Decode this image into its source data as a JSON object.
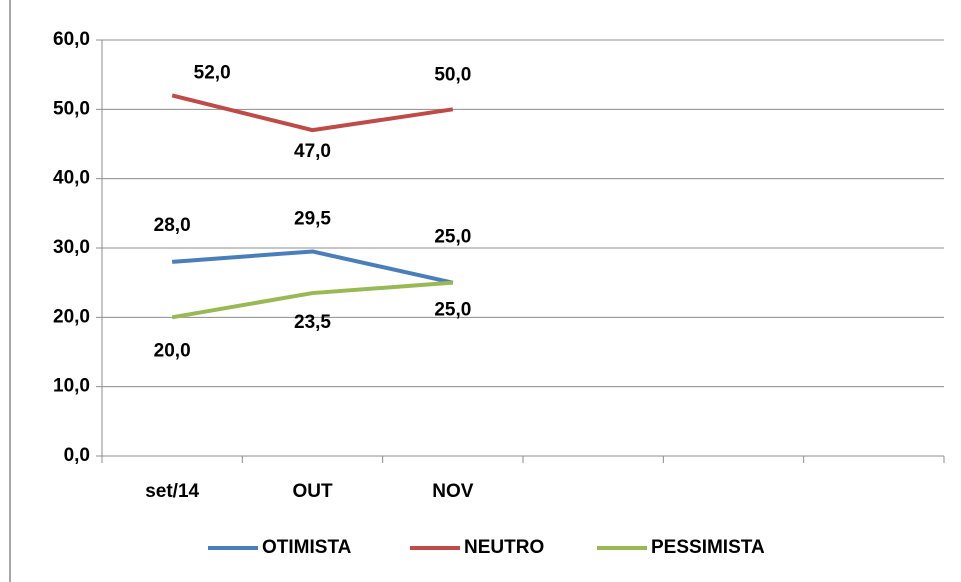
{
  "chart_data": {
    "type": "line",
    "categories": [
      "set/14",
      "OUT",
      "NOV",
      null,
      null,
      null
    ],
    "series": [
      {
        "name": "OTIMISTA",
        "color": "#4a7ebb",
        "values": [
          28,
          29.5,
          25,
          null,
          null,
          null
        ],
        "value_labels": [
          "28,0",
          "29,5",
          "25,0",
          null,
          null,
          null
        ]
      },
      {
        "name": "NEUTRO",
        "color": "#be4b48",
        "values": [
          52,
          47,
          50,
          null,
          null,
          null
        ],
        "value_labels": [
          "52,0",
          "47,0",
          "50,0",
          null,
          null,
          null
        ]
      },
      {
        "name": "PESSIMISTA",
        "color": "#98b954",
        "values": [
          20,
          23.5,
          25,
          null,
          null,
          null
        ],
        "value_labels": [
          "20,0",
          "23,5",
          "25,0",
          null,
          null,
          null
        ]
      }
    ],
    "ylim": [
      0,
      60
    ],
    "yticks": [
      {
        "value": 0,
        "label": "0,0"
      },
      {
        "value": 10,
        "label": "10,0"
      },
      {
        "value": 20,
        "label": "20,0"
      },
      {
        "value": 30,
        "label": "30,0"
      },
      {
        "value": 40,
        "label": "40,0"
      },
      {
        "value": 50,
        "label": "50,0"
      },
      {
        "value": 60,
        "label": "60,0"
      }
    ],
    "grid": true,
    "legend": "bottom"
  }
}
